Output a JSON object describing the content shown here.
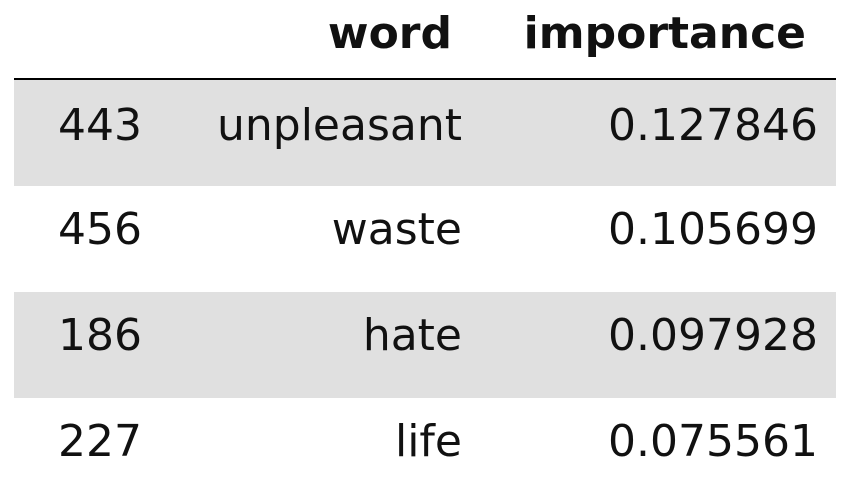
{
  "table": {
    "columns": {
      "index": "",
      "word": "word",
      "importance": "importance"
    },
    "rows": [
      {
        "index": "443",
        "word": "unpleasant",
        "importance": "0.127846"
      },
      {
        "index": "456",
        "word": "waste",
        "importance": "0.105699"
      },
      {
        "index": "186",
        "word": "hate",
        "importance": "0.097928"
      },
      {
        "index": "227",
        "word": "life",
        "importance": "0.075561"
      }
    ]
  },
  "colors": {
    "row_shade": "#e0e0e0",
    "header_rule": "#000000",
    "text": "#111111"
  }
}
